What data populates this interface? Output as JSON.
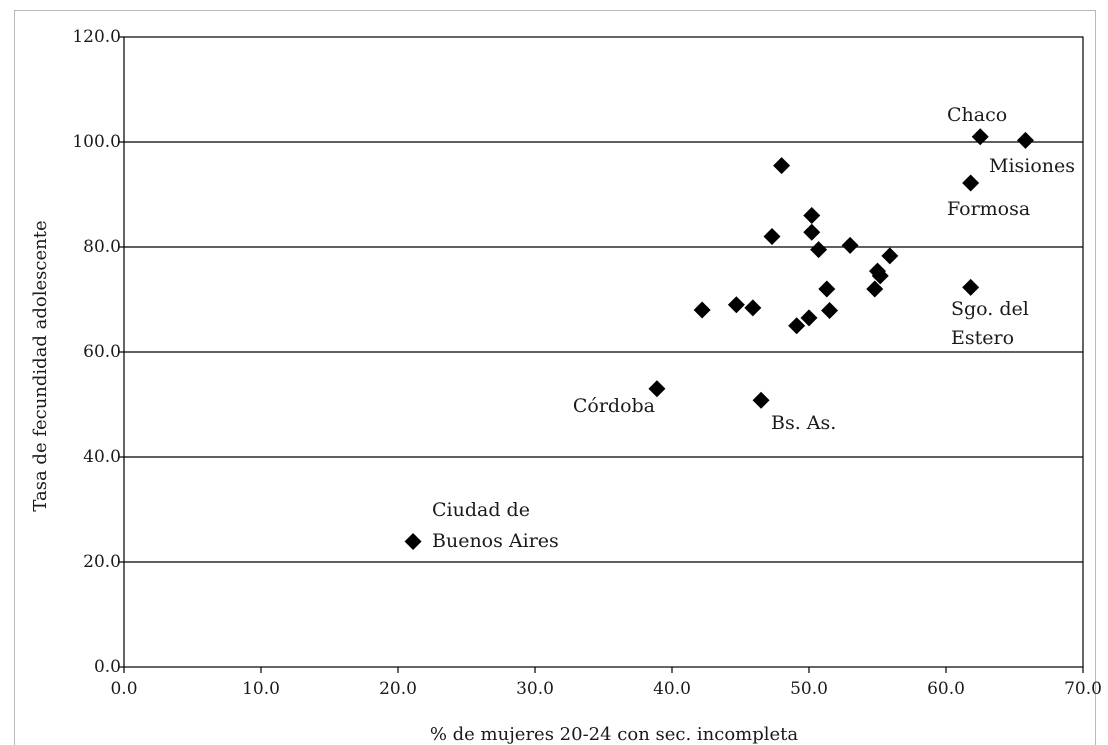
{
  "chart_data": {
    "type": "scatter",
    "xlabel": "% de mujeres 20-24 con sec. incompleta",
    "ylabel": "Tasa de fecundidad adolescente",
    "xlim": [
      0,
      70
    ],
    "ylim": [
      0,
      120
    ],
    "x_ticks": [
      "0.0",
      "10.0",
      "20.0",
      "30.0",
      "40.0",
      "50.0",
      "60.0",
      "70.0"
    ],
    "y_ticks": [
      "0.0",
      "20.0",
      "40.0",
      "60.0",
      "80.0",
      "100.0",
      "120.0"
    ],
    "grid": "horizontal",
    "marker": "diamond",
    "series": [
      {
        "points": [
          {
            "x": 62.5,
            "y": 101.0,
            "label": "Chaco"
          },
          {
            "x": 65.8,
            "y": 100.3,
            "label": "Misiones"
          },
          {
            "x": 61.8,
            "y": 92.2,
            "label": "Formosa"
          },
          {
            "x": 61.8,
            "y": 72.3,
            "label": "Sgo. del Estero"
          },
          {
            "x": 38.9,
            "y": 53.0,
            "label": "Córdoba"
          },
          {
            "x": 46.5,
            "y": 50.8,
            "label": "Bs. As."
          },
          {
            "x": 21.1,
            "y": 23.9,
            "label": "Ciudad de Buenos Aires"
          },
          {
            "x": 48.0,
            "y": 95.5
          },
          {
            "x": 50.2,
            "y": 86.0
          },
          {
            "x": 50.2,
            "y": 82.8
          },
          {
            "x": 47.3,
            "y": 82.0
          },
          {
            "x": 50.7,
            "y": 79.5
          },
          {
            "x": 53.0,
            "y": 80.3
          },
          {
            "x": 55.9,
            "y": 78.3
          },
          {
            "x": 55.0,
            "y": 75.4
          },
          {
            "x": 55.2,
            "y": 74.5
          },
          {
            "x": 54.8,
            "y": 72.0
          },
          {
            "x": 51.3,
            "y": 72.0
          },
          {
            "x": 51.5,
            "y": 67.9
          },
          {
            "x": 42.2,
            "y": 68.0
          },
          {
            "x": 44.7,
            "y": 69.0
          },
          {
            "x": 45.9,
            "y": 68.4
          },
          {
            "x": 50.0,
            "y": 66.5
          },
          {
            "x": 49.1,
            "y": 65.0
          }
        ]
      }
    ],
    "annotations": [
      {
        "id": "chaco",
        "lines": [
          "Chaco"
        ]
      },
      {
        "id": "misiones",
        "lines": [
          "Misiones"
        ]
      },
      {
        "id": "formosa",
        "lines": [
          "Formosa"
        ]
      },
      {
        "id": "sgo",
        "lines": [
          "Sgo. del",
          "Estero"
        ]
      },
      {
        "id": "cordoba",
        "lines": [
          "Córdoba"
        ]
      },
      {
        "id": "bsas",
        "lines": [
          "Bs. As."
        ]
      },
      {
        "id": "caba",
        "lines": [
          "Ciudad de",
          "Buenos Aires"
        ]
      }
    ]
  }
}
